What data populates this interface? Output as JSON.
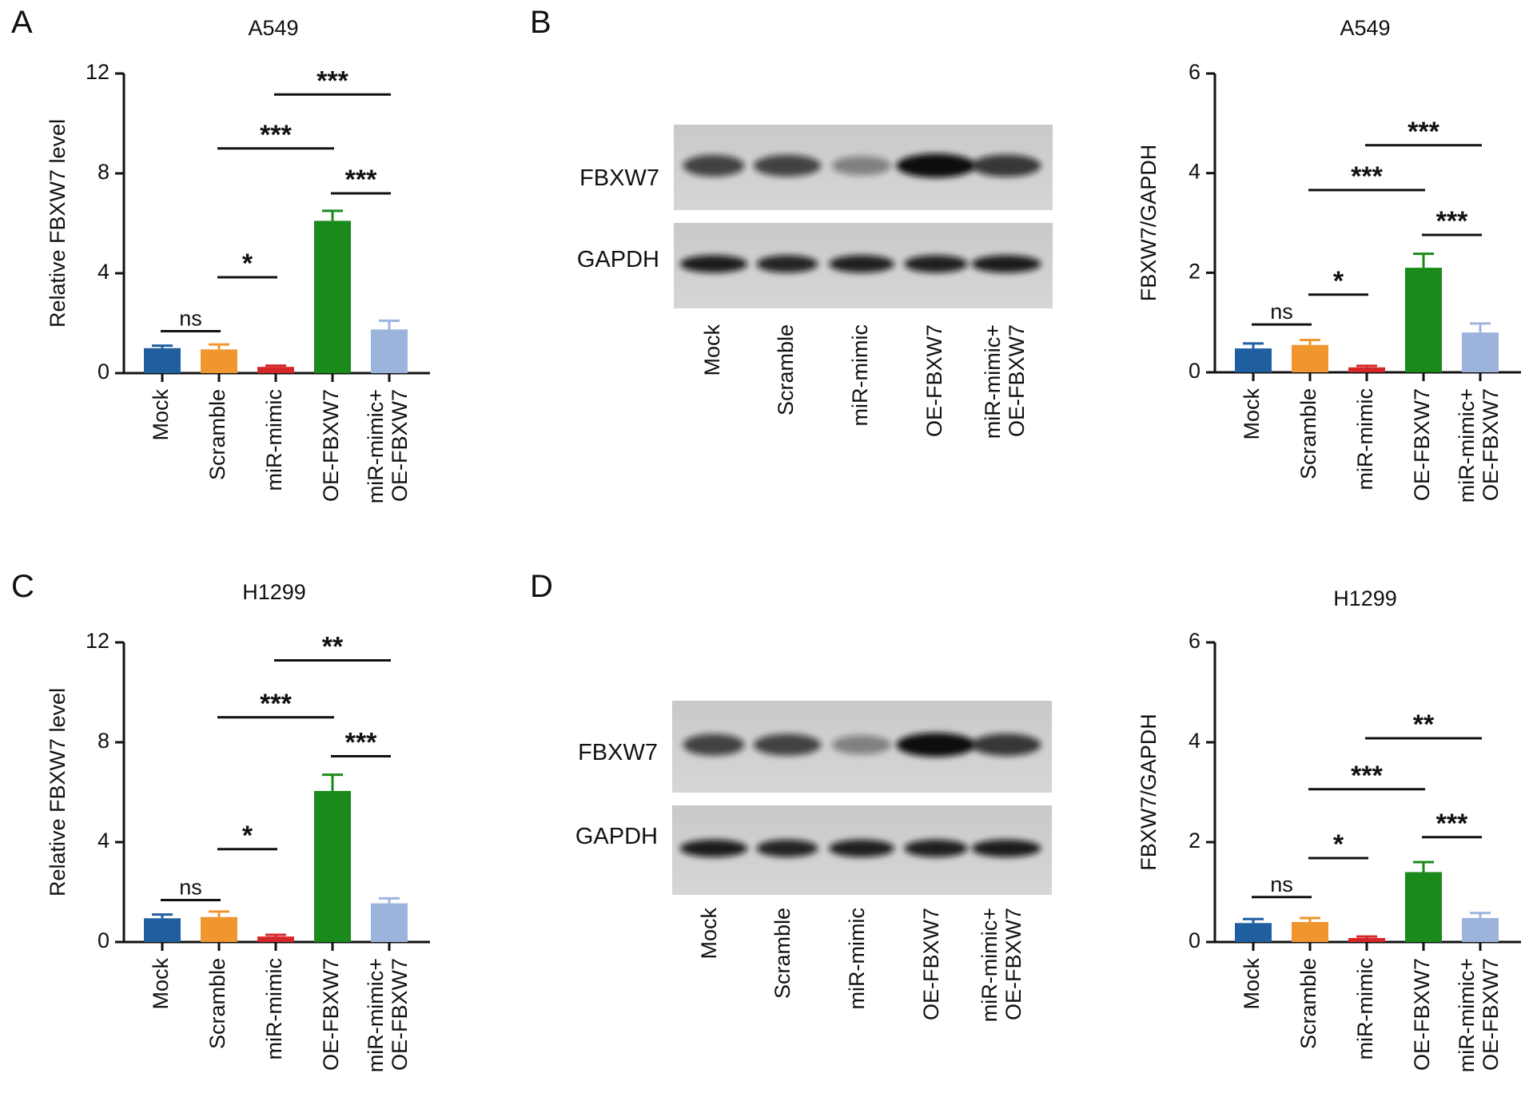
{
  "panel_labels": [
    "A",
    "B",
    "C",
    "D"
  ],
  "blots": [
    {
      "rows": [
        "FBXW7",
        "GAPDH"
      ],
      "lanes": [
        "Mock",
        "Scramble",
        "miR-mimic",
        "OE-FBXW7",
        "miR-mimic+\nOE-FBXW7"
      ]
    },
    {
      "rows": [
        "FBXW7",
        "GAPDH"
      ],
      "lanes": [
        "Mock",
        "Scramble",
        "miR-mimic",
        "OE-FBXW7",
        "miR-mimic+\nOE-FBXW7"
      ]
    }
  ],
  "chart_data": [
    {
      "type": "bar",
      "title": "A549",
      "y_label": "Relative FBXW7 level",
      "categories": [
        "Mock",
        "Scramble",
        "miR-mimic",
        "OE-FBXW7",
        "miR-mimic+\nOE-FBXW7"
      ],
      "values": [
        1.0,
        0.95,
        0.25,
        6.1,
        1.75
      ],
      "errors": [
        0.1,
        0.2,
        0.05,
        0.4,
        0.35
      ],
      "colors": [
        "#1f5fa0",
        "#f0962e",
        "#d62728",
        "#1a8a1a",
        "#9cb4dc"
      ],
      "ylim": [
        0,
        12
      ],
      "yticks": [
        0,
        4,
        8,
        12
      ],
      "annotations": [
        {
          "text": "ns",
          "between": [
            "Mock",
            "Scramble"
          ]
        },
        {
          "text": "*",
          "between": [
            "Scramble",
            "miR-mimic"
          ]
        },
        {
          "text": "***",
          "between": [
            "Scramble",
            "OE-FBXW7"
          ]
        },
        {
          "text": "***",
          "between": [
            "OE-FBXW7",
            "miR-mimic+\nOE-FBXW7"
          ]
        },
        {
          "text": "***",
          "between": [
            "miR-mimic",
            "miR-mimic+\nOE-FBXW7"
          ]
        }
      ]
    },
    {
      "type": "bar",
      "title": "A549",
      "y_label": "FBXW7/GAPDH",
      "categories": [
        "Mock",
        "Scramble",
        "miR-mimic",
        "OE-FBXW7",
        "miR-mimic+\nOE-FBXW7"
      ],
      "values": [
        0.48,
        0.55,
        0.1,
        2.1,
        0.8
      ],
      "errors": [
        0.1,
        0.1,
        0.03,
        0.28,
        0.18
      ],
      "colors": [
        "#1f5fa0",
        "#f0962e",
        "#d62728",
        "#1a8a1a",
        "#9cb4dc"
      ],
      "ylim": [
        0,
        6
      ],
      "yticks": [
        0,
        2,
        4,
        6
      ],
      "annotations": [
        {
          "text": "ns",
          "between": [
            "Mock",
            "Scramble"
          ]
        },
        {
          "text": "*",
          "between": [
            "Scramble",
            "miR-mimic"
          ]
        },
        {
          "text": "***",
          "between": [
            "Scramble",
            "OE-FBXW7"
          ]
        },
        {
          "text": "***",
          "between": [
            "OE-FBXW7",
            "miR-mimic+\nOE-FBXW7"
          ]
        },
        {
          "text": "***",
          "between": [
            "miR-mimic",
            "miR-mimic+\nOE-FBXW7"
          ]
        }
      ]
    },
    {
      "type": "bar",
      "title": "H1299",
      "y_label": "Relative FBXW7 level",
      "categories": [
        "Mock",
        "Scramble",
        "miR-mimic",
        "OE-FBXW7",
        "miR-mimic+\nOE-FBXW7"
      ],
      "values": [
        0.95,
        1.0,
        0.22,
        6.05,
        1.55
      ],
      "errors": [
        0.15,
        0.22,
        0.07,
        0.65,
        0.2
      ],
      "colors": [
        "#1f5fa0",
        "#f0962e",
        "#d62728",
        "#1a8a1a",
        "#9cb4dc"
      ],
      "ylim": [
        0,
        12
      ],
      "yticks": [
        0,
        4,
        8,
        12
      ],
      "annotations": [
        {
          "text": "ns",
          "between": [
            "Mock",
            "Scramble"
          ]
        },
        {
          "text": "*",
          "between": [
            "Scramble",
            "miR-mimic"
          ]
        },
        {
          "text": "***",
          "between": [
            "Scramble",
            "OE-FBXW7"
          ]
        },
        {
          "text": "***",
          "between": [
            "OE-FBXW7",
            "miR-mimic+\nOE-FBXW7"
          ]
        },
        {
          "text": "**",
          "between": [
            "miR-mimic",
            "miR-mimic+\nOE-FBXW7"
          ]
        }
      ]
    },
    {
      "type": "bar",
      "title": "H1299",
      "y_label": "FBXW7/GAPDH",
      "categories": [
        "Mock",
        "Scramble",
        "miR-mimic",
        "OE-FBXW7",
        "miR-mimic+\nOE-FBXW7"
      ],
      "values": [
        0.38,
        0.4,
        0.08,
        1.4,
        0.48
      ],
      "errors": [
        0.08,
        0.08,
        0.03,
        0.2,
        0.1
      ],
      "colors": [
        "#1f5fa0",
        "#f0962e",
        "#d62728",
        "#1a8a1a",
        "#9cb4dc"
      ],
      "ylim": [
        0,
        6
      ],
      "yticks": [
        0,
        2,
        4,
        6
      ],
      "annotations": [
        {
          "text": "ns",
          "between": [
            "Mock",
            "Scramble"
          ]
        },
        {
          "text": "*",
          "between": [
            "Scramble",
            "miR-mimic"
          ]
        },
        {
          "text": "***",
          "between": [
            "Scramble",
            "OE-FBXW7"
          ]
        },
        {
          "text": "***",
          "between": [
            "OE-FBXW7",
            "miR-mimic+\nOE-FBXW7"
          ]
        },
        {
          "text": "**",
          "between": [
            "miR-mimic",
            "miR-mimic+\nOE-FBXW7"
          ]
        }
      ]
    }
  ]
}
